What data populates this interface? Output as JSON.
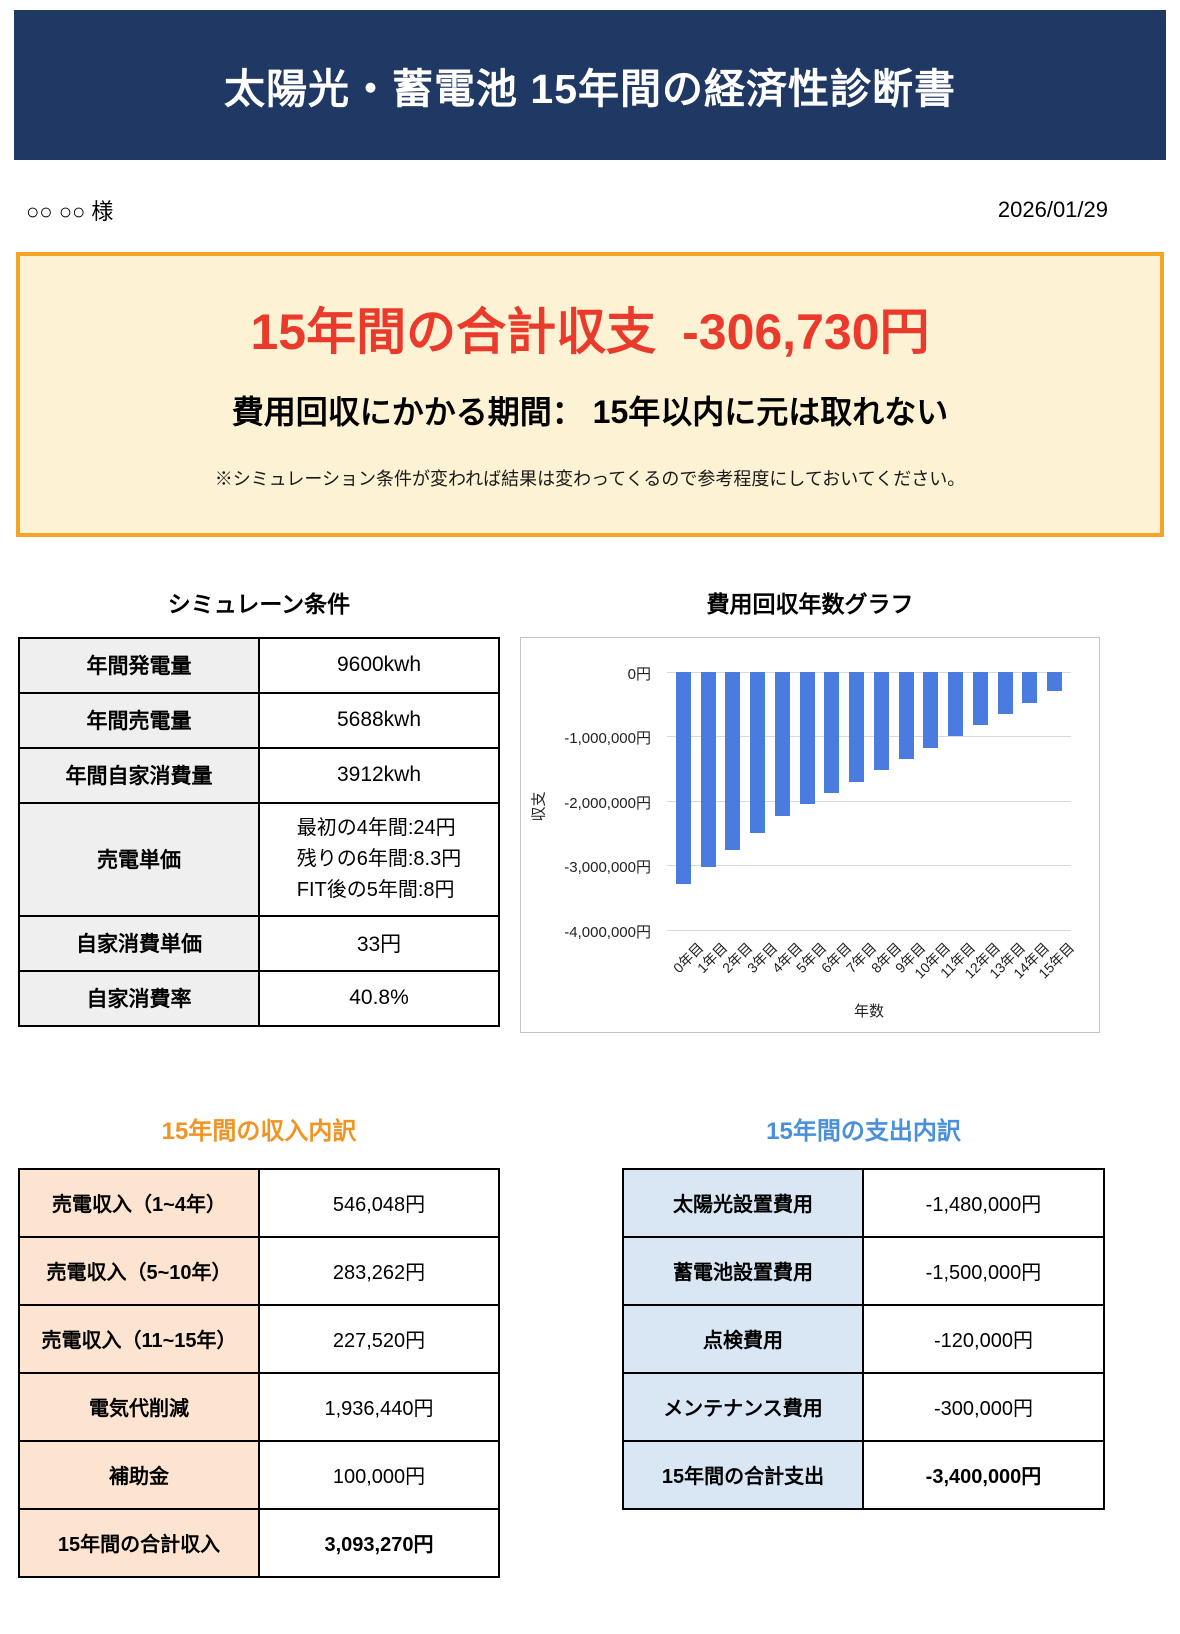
{
  "colors": {
    "banner_bg": "#1f3864",
    "summary_border": "#f4a427",
    "summary_bg": "#fdf2d3",
    "summary_red": "#e93a2c",
    "bar_blue": "#4a7ce0",
    "income_heading": "#f09423",
    "expense_heading": "#4a90d9",
    "income_label_bg": "#fce4d0",
    "expense_label_bg": "#d9e7f5",
    "condition_label_bg": "#efefef"
  },
  "header": {
    "title": "太陽光・蓄電池 15年間の経済性診断書",
    "customer_name": "○○ ○○ 様",
    "date": "2026/01/29"
  },
  "summary": {
    "balance_label": "15年間の合計収支",
    "balance_value": "-306,730円",
    "payback_text": "費用回収にかかる期間： 15年以内に元は取れない",
    "note": "※シミュレーション条件が変われば結果は変わってくるので参考程度にしておいてください。"
  },
  "conditions": {
    "heading": "シミュレーン条件",
    "rows": [
      {
        "label": "年間発電量",
        "value": "9600kwh"
      },
      {
        "label": "年間売電量",
        "value": "5688kwh"
      },
      {
        "label": "年間自家消費量",
        "value": "3912kwh"
      },
      {
        "label": "売電単価",
        "value_lines": [
          "最初の4年間:24円",
          "残りの6年間:8.3円",
          "FIT後の5年間:8円"
        ]
      },
      {
        "label": "自家消費単価",
        "value": "33円"
      },
      {
        "label": "自家消費率",
        "value": "40.8%"
      }
    ]
  },
  "chart_data": {
    "type": "bar",
    "title": "費用回収年数グラフ",
    "categories": [
      "0年目",
      "1年目",
      "2年目",
      "3年目",
      "4年目",
      "5年目",
      "6年目",
      "7年目",
      "8年目",
      "9年目",
      "10年目",
      "11年目",
      "12年目",
      "13年目",
      "14年目",
      "15年目"
    ],
    "values": [
      -3300000,
      -3034392,
      -2768784,
      -2503176,
      -2237568,
      -2061262,
      -1884955,
      -1708649,
      -1532342,
      -1356036,
      -1179730,
      -1005130,
      -830530,
      -655930,
      -481330,
      -306730
    ],
    "xlabel": "年数",
    "ylabel": "収支",
    "ylim": [
      -4000000,
      0
    ],
    "y_ticks": [
      "0円",
      "-1,000,000円",
      "-2,000,000円",
      "-3,000,000円",
      "-4,000,000円"
    ],
    "grid": true,
    "legend": false,
    "bar_color": "#4a7ce0"
  },
  "income": {
    "heading": "15年間の収入内訳",
    "rows": [
      {
        "label": "売電収入（1~4年）",
        "value": "546,048円"
      },
      {
        "label": "売電収入（5~10年）",
        "value": "283,262円"
      },
      {
        "label": "売電収入（11~15年）",
        "value": "227,520円"
      },
      {
        "label": "電気代削減",
        "value": "1,936,440円"
      },
      {
        "label": "補助金",
        "value": "100,000円"
      },
      {
        "label": "15年間の合計収入",
        "value": "3,093,270円"
      }
    ]
  },
  "expense": {
    "heading": "15年間の支出内訳",
    "rows": [
      {
        "label": "太陽光設置費用",
        "value": "-1,480,000円"
      },
      {
        "label": "蓄電池設置費用",
        "value": "-1,500,000円"
      },
      {
        "label": "点検費用",
        "value": "-120,000円"
      },
      {
        "label": "メンテナンス費用",
        "value": "-300,000円"
      },
      {
        "label": "15年間の合計支出",
        "value": "-3,400,000円"
      }
    ]
  }
}
